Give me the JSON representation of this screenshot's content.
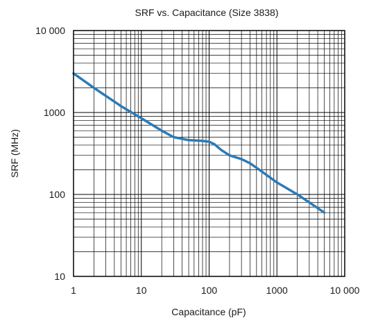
{
  "chart_data": {
    "type": "line",
    "title": "SRF vs. Capacitance (Size 3838)",
    "xlabel": "Capacitance (pF)",
    "ylabel": "SRF (MHz)",
    "x_scale": "log",
    "y_scale": "log",
    "xlim": [
      1,
      10000
    ],
    "ylim": [
      10,
      10000
    ],
    "grid": true,
    "x_tick_values": [
      1,
      10,
      100,
      1000,
      10000
    ],
    "x_tick_labels": [
      "1",
      "10",
      "100",
      "1000",
      "10 000"
    ],
    "y_tick_values": [
      10,
      100,
      1000,
      10000
    ],
    "y_tick_labels": [
      "10",
      "100",
      "1000",
      "10 000"
    ],
    "series": [
      {
        "color": "#2a7ab8",
        "x": [
          1,
          2,
          5,
          10,
          20,
          30,
          50,
          80,
          100,
          120,
          150,
          200,
          300,
          400,
          600,
          1000,
          2000,
          3000,
          5000
        ],
        "y": [
          3000,
          2000,
          1200,
          850,
          600,
          500,
          460,
          450,
          440,
          410,
          350,
          300,
          270,
          240,
          190,
          140,
          100,
          80,
          60
        ]
      }
    ]
  }
}
